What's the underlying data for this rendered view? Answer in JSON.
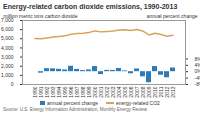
{
  "chart_data": {
    "type": "bar+line",
    "title": "Energy-related carbon dioxide emissions, 1990-2013",
    "caption": "Source: U.S. Energy Information Administration, Monthly Energy Review",
    "categories": [
      1990,
      1991,
      1992,
      1993,
      1994,
      1995,
      1996,
      1997,
      1998,
      1999,
      2000,
      2001,
      2002,
      2003,
      2004,
      2005,
      2006,
      2007,
      2008,
      2009,
      2010,
      2011,
      2012,
      2013
    ],
    "series": [
      {
        "name": "annual percent change",
        "type": "bar",
        "axis": "y2",
        "color": "#2b7bb9",
        "values": [
          null,
          -0.9,
          1.9,
          1.8,
          1.5,
          1.1,
          3.4,
          1.4,
          0.7,
          1.1,
          3.2,
          -1.8,
          0.8,
          0.8,
          2.0,
          0.5,
          -1.3,
          1.7,
          -3.2,
          -6.9,
          3.2,
          -2.2,
          -3.8,
          2.3
        ]
      },
      {
        "name": "energy-related CO2",
        "type": "line",
        "color": "#d9a45a",
        "values": [
          5039,
          4996,
          5093,
          5186,
          5262,
          5320,
          5500,
          5577,
          5617,
          5681,
          5864,
          5756,
          5803,
          5852,
          5970,
          5999,
          5918,
          6017,
          5827,
          5425,
          5598,
          5475,
          5270,
          5393
        ]
      }
    ],
    "ylabel": "million metric tons carbon dioxide",
    "y2label": "annual percent change",
    "ylim": [
      0,
      7000
    ],
    "yticks": [
      0,
      {
        "value": 1000,
        "label": "1,000"
      },
      {
        "value": 2000,
        "label": "2,000"
      },
      {
        "value": 3000,
        "label": "3,000"
      },
      {
        "value": 4000,
        "label": "4,000"
      },
      {
        "value": 5000,
        "label": "5,000"
      },
      {
        "value": 6000,
        "label": "6,000"
      },
      {
        "value": 7000,
        "label": "7,000"
      }
    ],
    "y2lim": [
      -8,
      32
    ],
    "y2ticks": [
      {
        "value": -8,
        "label": "-8%"
      },
      {
        "value": -4,
        "label": "-4%"
      },
      {
        "value": 0,
        "label": "0%"
      },
      {
        "value": 4,
        "label": "4%"
      },
      {
        "value": 8,
        "label": "8%"
      }
    ],
    "legend": "bottom"
  }
}
